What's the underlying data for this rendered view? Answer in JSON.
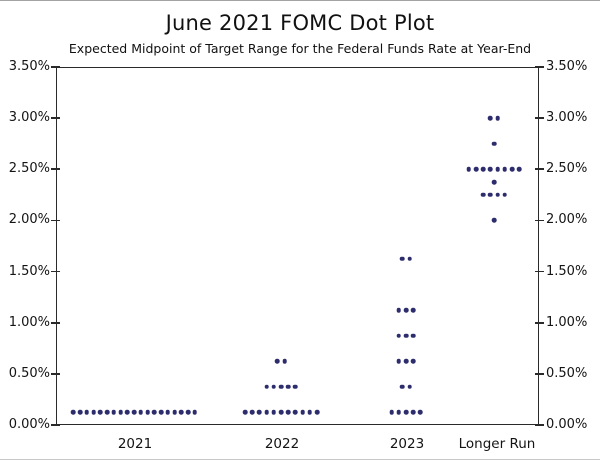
{
  "chart_data": {
    "type": "scatter",
    "title": "June 2021 FOMC Dot Plot",
    "subtitle": "Expected Midpoint of Target Range for the Federal Funds Rate at Year-End",
    "categories": [
      "2021",
      "2022",
      "2023",
      "Longer Run"
    ],
    "y_axis": {
      "min": 0,
      "max": 3.5,
      "step": 0.5,
      "tick_labels": [
        "0.00%",
        "0.50%",
        "1.00%",
        "1.50%",
        "2.00%",
        "2.50%",
        "3.00%",
        "3.50%"
      ],
      "label_sides": [
        "left",
        "right"
      ]
    },
    "grid": false,
    "legend": null,
    "dot_color": "#2d2d6e",
    "frame_color": "#2a2a2a",
    "series": [
      {
        "category": "2021",
        "dots": [
          {
            "rate": 0.125,
            "count": 19
          }
        ]
      },
      {
        "category": "2022",
        "dots": [
          {
            "rate": 0.125,
            "count": 11
          },
          {
            "rate": 0.375,
            "count": 5
          },
          {
            "rate": 0.625,
            "count": 2
          }
        ]
      },
      {
        "category": "2023",
        "dots": [
          {
            "rate": 0.125,
            "count": 5
          },
          {
            "rate": 0.375,
            "count": 2
          },
          {
            "rate": 0.625,
            "count": 3
          },
          {
            "rate": 0.875,
            "count": 3
          },
          {
            "rate": 1.125,
            "count": 3
          },
          {
            "rate": 1.625,
            "count": 2
          }
        ]
      },
      {
        "category": "Longer Run",
        "dots": [
          {
            "rate": 2.0,
            "count": 1
          },
          {
            "rate": 2.25,
            "count": 4
          },
          {
            "rate": 2.375,
            "count": 1
          },
          {
            "rate": 2.5,
            "count": 8
          },
          {
            "rate": 2.75,
            "count": 1
          },
          {
            "rate": 3.0,
            "count": 2
          }
        ]
      }
    ]
  }
}
